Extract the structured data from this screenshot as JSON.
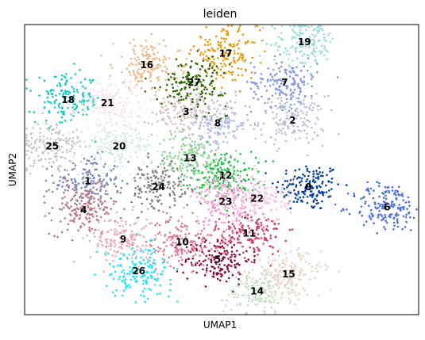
{
  "chart_data": {
    "type": "scatter",
    "title": "leiden",
    "xlabel": "UMAP1",
    "ylabel": "UMAP2",
    "xlim": [
      0,
      100
    ],
    "ylim": [
      0,
      100
    ],
    "grid": false,
    "legend": "on data",
    "clusters": [
      {
        "label": "0",
        "x": 72,
        "y": 44,
        "color": "#023fa5"
      },
      {
        "label": "1",
        "x": 16,
        "y": 46,
        "color": "#7d87b9"
      },
      {
        "label": "2",
        "x": 68,
        "y": 67,
        "color": "#bec1d4"
      },
      {
        "label": "3",
        "x": 41,
        "y": 70,
        "color": "#d6bcc0"
      },
      {
        "label": "4",
        "x": 15,
        "y": 36,
        "color": "#bb7784"
      },
      {
        "label": "5",
        "x": 49,
        "y": 19,
        "color": "#8e063b"
      },
      {
        "label": "6",
        "x": 92,
        "y": 37,
        "color": "#4a6fe3"
      },
      {
        "label": "7",
        "x": 66,
        "y": 80,
        "color": "#8595e1"
      },
      {
        "label": "8",
        "x": 49,
        "y": 66,
        "color": "#b5bbe3"
      },
      {
        "label": "9",
        "x": 25,
        "y": 26,
        "color": "#e6afb9"
      },
      {
        "label": "10",
        "x": 40,
        "y": 25,
        "color": "#e07b91"
      },
      {
        "label": "11",
        "x": 57,
        "y": 28,
        "color": "#d33f6a"
      },
      {
        "label": "12",
        "x": 51,
        "y": 48,
        "color": "#11c638"
      },
      {
        "label": "13",
        "x": 42,
        "y": 54,
        "color": "#8dd593"
      },
      {
        "label": "14",
        "x": 59,
        "y": 8,
        "color": "#c6dec7"
      },
      {
        "label": "15",
        "x": 67,
        "y": 14,
        "color": "#ead3c6"
      },
      {
        "label": "16",
        "x": 31,
        "y": 86,
        "color": "#f0b98d"
      },
      {
        "label": "17",
        "x": 51,
        "y": 90,
        "color": "#ef9708"
      },
      {
        "label": "18",
        "x": 11,
        "y": 74,
        "color": "#0fcfc0"
      },
      {
        "label": "19",
        "x": 71,
        "y": 94,
        "color": "#9cded6"
      },
      {
        "label": "20",
        "x": 24,
        "y": 58,
        "color": "#d5eae7"
      },
      {
        "label": "21",
        "x": 21,
        "y": 73,
        "color": "#f3e1eb"
      },
      {
        "label": "22",
        "x": 59,
        "y": 40,
        "color": "#f6c4e1"
      },
      {
        "label": "23",
        "x": 51,
        "y": 39,
        "color": "#f79cd4"
      },
      {
        "label": "24",
        "x": 34,
        "y": 44,
        "color": "#7f7f7f"
      },
      {
        "label": "25",
        "x": 7,
        "y": 58,
        "color": "#c7c7c7"
      },
      {
        "label": "26",
        "x": 29,
        "y": 15,
        "color": "#1ce6ff"
      },
      {
        "label": "27",
        "x": 43,
        "y": 80,
        "color": "#336600"
      }
    ]
  }
}
